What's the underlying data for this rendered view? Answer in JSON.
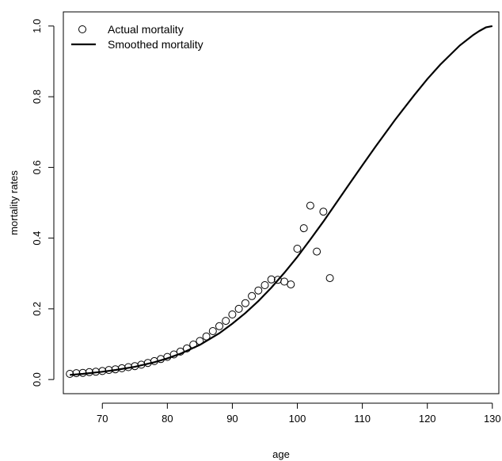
{
  "chart_data": {
    "type": "scatter",
    "xlabel": "age",
    "ylabel": "mortality rates",
    "xlim": [
      64,
      131
    ],
    "ylim": [
      -0.04,
      1.04
    ],
    "x_ticks": [
      70,
      80,
      90,
      100,
      110,
      120,
      130
    ],
    "y_ticks": [
      0.0,
      0.2,
      0.4,
      0.6,
      0.8,
      1.0
    ],
    "y_tick_labels": [
      "0.0",
      "0.2",
      "0.4",
      "0.6",
      "0.8",
      "1.0"
    ],
    "legend": {
      "position": "top-left",
      "entries": [
        {
          "label": "Actual mortality",
          "symbol": "circle"
        },
        {
          "label": "Smoothed mortality",
          "symbol": "line"
        }
      ]
    },
    "series": [
      {
        "name": "Actual mortality",
        "type": "scatter",
        "x": [
          65,
          66,
          67,
          68,
          69,
          70,
          71,
          72,
          73,
          74,
          75,
          76,
          77,
          78,
          79,
          80,
          81,
          82,
          83,
          84,
          85,
          86,
          87,
          88,
          89,
          90,
          91,
          92,
          93,
          94,
          95,
          96,
          97,
          98,
          99,
          100,
          101,
          102,
          103,
          104,
          105
        ],
        "y": [
          0.016,
          0.018,
          0.019,
          0.021,
          0.022,
          0.024,
          0.027,
          0.029,
          0.032,
          0.035,
          0.038,
          0.042,
          0.047,
          0.052,
          0.058,
          0.064,
          0.071,
          0.079,
          0.088,
          0.099,
          0.109,
          0.122,
          0.137,
          0.151,
          0.166,
          0.184,
          0.2,
          0.216,
          0.236,
          0.252,
          0.267,
          0.283,
          0.282,
          0.277,
          0.269,
          0.37,
          0.428,
          0.492,
          0.362,
          0.475,
          0.287
        ]
      },
      {
        "name": "Smoothed mortality",
        "type": "line",
        "x": [
          65,
          67,
          70,
          72,
          75,
          78,
          80,
          82,
          85,
          88,
          90,
          92,
          94,
          96,
          98,
          100,
          102,
          104,
          106,
          108,
          110,
          112,
          115,
          118,
          120,
          122,
          125,
          127,
          128,
          129,
          130
        ],
        "y": [
          0.013,
          0.016,
          0.022,
          0.027,
          0.036,
          0.049,
          0.06,
          0.073,
          0.098,
          0.131,
          0.158,
          0.188,
          0.222,
          0.26,
          0.302,
          0.347,
          0.396,
          0.447,
          0.5,
          0.553,
          0.606,
          0.658,
          0.734,
          0.805,
          0.85,
          0.891,
          0.945,
          0.974,
          0.986,
          0.996,
          1.0
        ]
      }
    ]
  }
}
